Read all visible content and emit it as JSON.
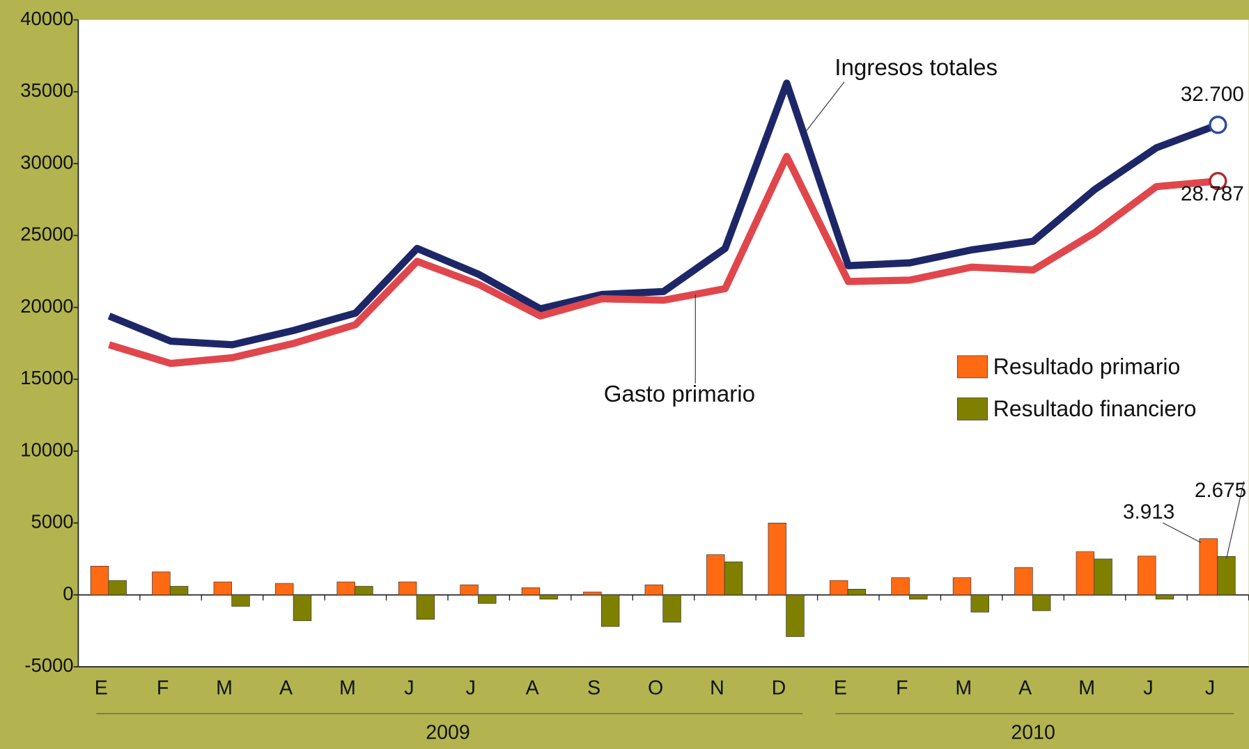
{
  "chart_data": {
    "type": "combo",
    "categories": [
      "E",
      "F",
      "M",
      "A",
      "M",
      "J",
      "J",
      "A",
      "S",
      "O",
      "N",
      "D",
      "E",
      "F",
      "M",
      "A",
      "M",
      "J",
      "J"
    ],
    "x_groups": [
      "2009",
      "2010"
    ],
    "series": [
      {
        "name": "Ingresos totales",
        "type": "line",
        "color": "#1d2768",
        "values": [
          19400,
          17650,
          17400,
          18400,
          19600,
          24100,
          22300,
          19900,
          20900,
          21100,
          24100,
          35600,
          22900,
          23100,
          24000,
          24600,
          28200,
          31100,
          32700
        ],
        "value_labels": [
          null,
          null,
          null,
          null,
          null,
          null,
          null,
          null,
          null,
          null,
          null,
          null,
          null,
          null,
          null,
          null,
          null,
          null,
          "32.700"
        ]
      },
      {
        "name": "Gasto primario",
        "type": "line",
        "color": "#e0474c",
        "values": [
          17400,
          16100,
          16500,
          17500,
          18800,
          23200,
          21600,
          19400,
          20600,
          20500,
          21300,
          30500,
          21800,
          21900,
          22800,
          22600,
          25200,
          28400,
          28787
        ],
        "value_labels": [
          null,
          null,
          null,
          null,
          null,
          null,
          null,
          null,
          null,
          null,
          null,
          null,
          null,
          null,
          null,
          null,
          null,
          null,
          "28.787"
        ]
      },
      {
        "name": "Resultado primario",
        "type": "bar",
        "color": "#ff6a13",
        "values": [
          2000,
          1600,
          900,
          800,
          900,
          900,
          700,
          500,
          200,
          700,
          2800,
          5000,
          1000,
          1200,
          1200,
          1900,
          3000,
          2700,
          3913
        ],
        "value_labels": [
          null,
          null,
          null,
          null,
          null,
          null,
          null,
          null,
          null,
          null,
          null,
          null,
          null,
          null,
          null,
          null,
          null,
          null,
          "3.913"
        ]
      },
      {
        "name": "Resultado financiero",
        "type": "bar",
        "color": "#808000",
        "values": [
          1000,
          600,
          -800,
          -1800,
          600,
          -1700,
          -600,
          -300,
          -2200,
          -1900,
          2300,
          -2900,
          400,
          -300,
          -1200,
          -1100,
          2500,
          -300,
          2675
        ],
        "value_labels": [
          null,
          null,
          null,
          null,
          null,
          null,
          null,
          null,
          null,
          null,
          null,
          null,
          null,
          null,
          null,
          null,
          null,
          null,
          "2.675"
        ]
      }
    ],
    "ylim": [
      -5000,
      40000
    ],
    "yticks": [
      -5000,
      0,
      5000,
      10000,
      15000,
      20000,
      25000,
      30000,
      35000,
      40000
    ],
    "grid": false,
    "legend": "right"
  }
}
